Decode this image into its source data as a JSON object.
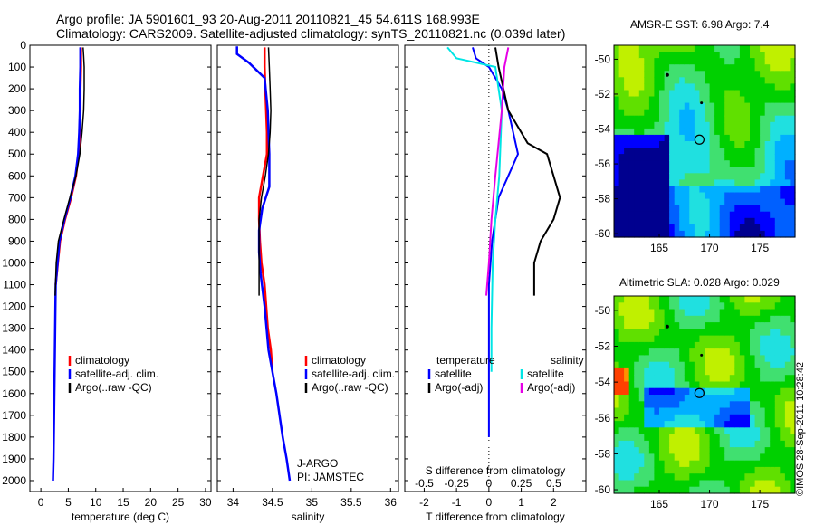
{
  "figure": {
    "title_line1": "Argo profile: JA 5901601_93 20-Aug-2011 20110821_45 54.611S 168.993E",
    "title_line2": "Climatology: CARS2009. Satellite-adjusted climatology: synTS_20110821.nc (0.039d later)",
    "watermark": "©IMOS 28-Sep-2011 10:28:42",
    "colors": {
      "climatology": "#ff0000",
      "satellite": "#0000ff",
      "argo": "#000000",
      "sat_salinity": "#00e5e5",
      "argo_salinity": "#e600e6"
    }
  },
  "chart_data": [
    {
      "type": "line",
      "xlabel": "temperature (deg C)",
      "ylabel": "",
      "xlim": [
        -2,
        31
      ],
      "ylim": [
        2050,
        0
      ],
      "xticks": [
        "0",
        "5",
        "10",
        "15",
        "20",
        "25",
        "30"
      ],
      "yticks": [
        "0",
        "100",
        "200",
        "300",
        "400",
        "500",
        "600",
        "700",
        "800",
        "900",
        "1000",
        "1100",
        "1200",
        "1300",
        "1400",
        "1500",
        "1600",
        "1700",
        "1800",
        "1900",
        "2000"
      ],
      "legend": [
        "climatology",
        "satellite-adj. clim.",
        "Argo(..raw -QC)"
      ],
      "series": [
        {
          "name": "climatology",
          "color": "#ff0000",
          "x": [
            7.3,
            7.3,
            7.2,
            7.2,
            7.1,
            6.9,
            6.4,
            5.5,
            4.4,
            3.5,
            2.7
          ],
          "depth": [
            10,
            100,
            200,
            300,
            400,
            500,
            600,
            700,
            800,
            900,
            1100
          ]
        },
        {
          "name": "satellite-adj. clim.",
          "color": "#0000ff",
          "x": [
            7.2,
            7.2,
            7.1,
            7.1,
            7.0,
            6.8,
            6.3,
            5.4,
            4.3,
            3.4,
            2.7,
            2.6,
            2.5,
            2.4,
            2.3,
            2.2
          ],
          "depth": [
            10,
            100,
            200,
            300,
            400,
            500,
            600,
            700,
            800,
            900,
            1100,
            1300,
            1500,
            1700,
            1900,
            2000
          ]
        },
        {
          "name": "Argo(..raw -QC)",
          "color": "#000000",
          "x": [
            7.7,
            7.8,
            7.9,
            7.9,
            7.8,
            7.5,
            7.1,
            6.4,
            5.3,
            4.2,
            3.2,
            2.8,
            2.6
          ],
          "depth": [
            10,
            50,
            100,
            200,
            300,
            400,
            500,
            600,
            700,
            800,
            900,
            1000,
            1150
          ]
        }
      ]
    },
    {
      "type": "line",
      "xlabel": "salinity",
      "xlim": [
        33.8,
        36.1
      ],
      "ylim": [
        2050,
        0
      ],
      "xticks": [
        "34",
        "34.5",
        "35",
        "35.5",
        "36"
      ],
      "legend": [
        "climatology",
        "satellite-adj. clim.",
        "Argo(..raw -QC)"
      ],
      "annotation": [
        "J-ARGO",
        "PI: JAMSTEC"
      ],
      "series": [
        {
          "name": "climatology",
          "color": "#ff0000",
          "x": [
            34.4,
            34.4,
            34.41,
            34.42,
            34.43,
            34.43,
            34.38,
            34.33,
            34.33,
            34.34,
            34.36,
            34.4,
            34.44,
            34.48,
            34.5
          ],
          "depth": [
            10,
            100,
            200,
            300,
            400,
            500,
            600,
            700,
            800,
            900,
            1000,
            1100,
            1300,
            1400,
            1500
          ]
        },
        {
          "name": "satellite-adj. clim.",
          "color": "#0000ff",
          "x": [
            34.05,
            34.05,
            34.2,
            34.4,
            34.44,
            34.46,
            34.46,
            34.37,
            34.33,
            34.33,
            34.35,
            34.4,
            34.45,
            34.55,
            34.63,
            34.68,
            34.72
          ],
          "depth": [
            5,
            40,
            80,
            150,
            300,
            500,
            650,
            750,
            850,
            950,
            1050,
            1200,
            1400,
            1600,
            1800,
            1900,
            2000
          ]
        },
        {
          "name": "Argo(..raw -QC)",
          "color": "#000000",
          "x": [
            34.45,
            34.46,
            34.47,
            34.48,
            34.47,
            34.45,
            34.41,
            34.36,
            34.33,
            34.33,
            34.33
          ],
          "depth": [
            10,
            100,
            200,
            300,
            400,
            500,
            600,
            700,
            800,
            950,
            1150
          ]
        }
      ]
    },
    {
      "type": "line",
      "xlabel": "T difference from climatology",
      "xlabel2": "S difference from climatology",
      "xlim": [
        -2.6,
        3
      ],
      "ylim": [
        2050,
        0
      ],
      "xticks": [
        "-2",
        "-1",
        "0",
        "1",
        "2"
      ],
      "xticks2": [
        "-0.5",
        "-0.25",
        "0",
        "0.25",
        "0.5"
      ],
      "legend_left": [
        "temperature",
        "satellite",
        "Argo(-adj)"
      ],
      "legend_right": [
        "salinity",
        "satellite",
        "Argo(-adj)"
      ],
      "series": [
        {
          "name": "temperature satellite",
          "color": "#0000ff",
          "x": [
            -0.5,
            -0.4,
            0.0,
            0.4,
            0.6,
            0.9,
            0.3,
            0.1,
            0.0,
            0.0,
            0.0,
            0.0
          ],
          "depth": [
            10,
            60,
            100,
            200,
            300,
            500,
            700,
            900,
            1100,
            1300,
            1500,
            1800
          ]
        },
        {
          "name": "temperature Argo(-adj)",
          "color": "#000000",
          "x": [
            0.2,
            0.3,
            0.6,
            1.2,
            1.8,
            2.0,
            2.2,
            2.0,
            1.6,
            1.4,
            1.4
          ],
          "depth": [
            10,
            100,
            300,
            450,
            500,
            600,
            700,
            800,
            900,
            1000,
            1150
          ]
        },
        {
          "name": "salinity satellite",
          "color": "#00e5e5",
          "x": [
            -0.32,
            -0.25,
            0.05,
            0.1,
            0.08,
            0.05,
            0.03,
            0.02,
            0.02
          ],
          "depth": [
            10,
            60,
            100,
            300,
            600,
            800,
            1000,
            1300,
            1500
          ]
        },
        {
          "name": "salinity Argo(-adj)",
          "color": "#e600e6",
          "x": [
            0.15,
            0.12,
            0.1,
            0.05,
            0.02,
            0.0,
            -0.02
          ],
          "depth": [
            10,
            100,
            300,
            600,
            800,
            1000,
            1150
          ]
        }
      ]
    },
    {
      "type": "heatmap",
      "title": "AMSR-E SST: 6.98 Argo: 7.4",
      "xlim": [
        160.5,
        178.5
      ],
      "ylim": [
        -60.2,
        -49.2
      ],
      "xticks": [
        "165",
        "170",
        "175"
      ],
      "yticks": [
        "-50",
        "-52",
        "-54",
        "-56",
        "-58",
        "-60"
      ],
      "float_position": {
        "lon": 168.993,
        "lat": -54.611
      }
    },
    {
      "type": "heatmap",
      "title": "Altimetric SLA: 0.028 Argo: 0.029",
      "xlim": [
        160.5,
        178.5
      ],
      "ylim": [
        -60.2,
        -49.2
      ],
      "xticks": [
        "165",
        "170",
        "175"
      ],
      "yticks": [
        "-50",
        "-52",
        "-54",
        "-56",
        "-58",
        "-60"
      ],
      "float_position": {
        "lon": 168.993,
        "lat": -54.611
      }
    }
  ]
}
